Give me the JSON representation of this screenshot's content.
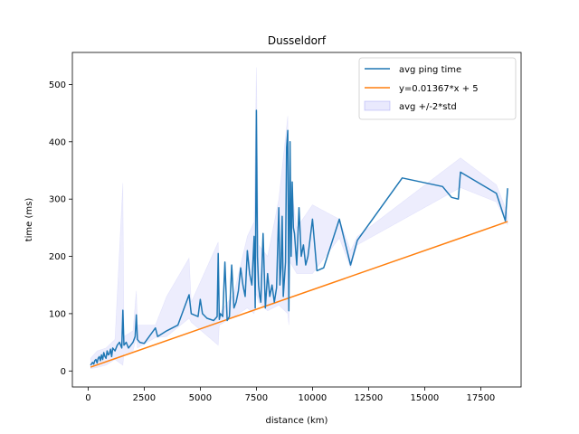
{
  "chart_data": {
    "type": "line",
    "title": "Dusseldorf",
    "xlabel": "distance (km)",
    "ylabel": "time (ms)",
    "xlim": [
      -700,
      19300
    ],
    "ylim": [
      -28,
      556
    ],
    "x_ticks": [
      0,
      2500,
      5000,
      7500,
      10000,
      12500,
      15000,
      17500
    ],
    "y_ticks": [
      0,
      100,
      200,
      300,
      400,
      500
    ],
    "grid": false,
    "legend_position": "top-right",
    "colors": {
      "avg": "#1f77b4",
      "fit": "#ff7f0e",
      "band": "#6b6bf0"
    },
    "legend": [
      {
        "label": "avg ping time",
        "kind": "line",
        "color": "#1f77b4"
      },
      {
        "label": "y=0.01367*x + 5",
        "kind": "line",
        "color": "#ff7f0e"
      },
      {
        "label": "avg +/-2*std",
        "kind": "patch",
        "color": "#6b6bf0"
      }
    ],
    "series": [
      {
        "name": "avg ping time",
        "x": [
          110,
          200,
          250,
          300,
          350,
          400,
          450,
          500,
          550,
          600,
          650,
          700,
          750,
          800,
          850,
          900,
          950,
          1000,
          1050,
          1100,
          1200,
          1300,
          1400,
          1500,
          1550,
          1600,
          1700,
          1800,
          1900,
          2000,
          2100,
          2150,
          2200,
          2300,
          2500,
          3000,
          3100,
          3500,
          4000,
          4500,
          4600,
          4900,
          5000,
          5100,
          5300,
          5600,
          5750,
          5800,
          5850,
          5900,
          6000,
          6100,
          6200,
          6300,
          6400,
          6500,
          6600,
          6700,
          6800,
          6900,
          7000,
          7100,
          7200,
          7300,
          7400,
          7450,
          7500,
          7550,
          7600,
          7650,
          7700,
          7800,
          7900,
          8000,
          8100,
          8200,
          8300,
          8400,
          8500,
          8550,
          8600,
          8650,
          8700,
          8800,
          8850,
          8900,
          8950,
          9000,
          9050,
          9100,
          9150,
          9200,
          9300,
          9400,
          9500,
          9600,
          9700,
          9800,
          10000,
          10200,
          10500,
          11200,
          11700,
          12000,
          14000,
          15800,
          16200,
          16500,
          16600,
          18200,
          18600,
          18700
        ],
        "y": [
          10,
          15,
          12,
          18,
          20,
          14,
          22,
          25,
          18,
          28,
          20,
          32,
          25,
          22,
          35,
          28,
          30,
          38,
          25,
          40,
          35,
          45,
          50,
          40,
          106,
          45,
          50,
          40,
          45,
          50,
          60,
          98,
          55,
          50,
          48,
          75,
          60,
          70,
          80,
          133,
          100,
          95,
          125,
          100,
          92,
          88,
          95,
          205,
          90,
          100,
          95,
          190,
          88,
          95,
          185,
          110,
          120,
          140,
          180,
          150,
          130,
          210,
          170,
          150,
          235,
          110,
          455,
          200,
          150,
          130,
          120,
          240,
          110,
          170,
          130,
          150,
          120,
          145,
          285,
          150,
          180,
          270,
          130,
          190,
          390,
          420,
          105,
          400,
          200,
          330,
          250,
          240,
          185,
          285,
          200,
          220,
          185,
          200,
          265,
          175,
          180,
          265,
          185,
          228,
          337,
          322,
          303,
          300,
          347,
          310,
          262,
          319
        ]
      },
      {
        "name": "y=0.01367*x + 5",
        "slope": 0.01367,
        "intercept": 5,
        "x": [
          110,
          18700
        ]
      }
    ],
    "band": {
      "name": "avg +/-2*std",
      "x": [
        110,
        400,
        800,
        1200,
        1550,
        1600,
        2000,
        2150,
        2200,
        3000,
        3500,
        4500,
        4600,
        5800,
        5850,
        6500,
        7100,
        7400,
        7500,
        7600,
        8000,
        8500,
        8900,
        8950,
        9000,
        9300,
        10000,
        11200,
        11700,
        12000,
        16600,
        18200,
        18700
      ],
      "upper": [
        22,
        35,
        40,
        55,
        328,
        60,
        70,
        140,
        80,
        80,
        130,
        197,
        120,
        225,
        100,
        135,
        235,
        260,
        530,
        220,
        200,
        300,
        445,
        150,
        340,
        250,
        290,
        265,
        210,
        235,
        372,
        325,
        275
      ],
      "lower": [
        4,
        6,
        10,
        20,
        10,
        30,
        35,
        58,
        40,
        58,
        60,
        92,
        85,
        45,
        80,
        95,
        110,
        100,
        135,
        120,
        105,
        115,
        100,
        80,
        190,
        170,
        170,
        232,
        180,
        220,
        320,
        295,
        255
      ]
    }
  }
}
